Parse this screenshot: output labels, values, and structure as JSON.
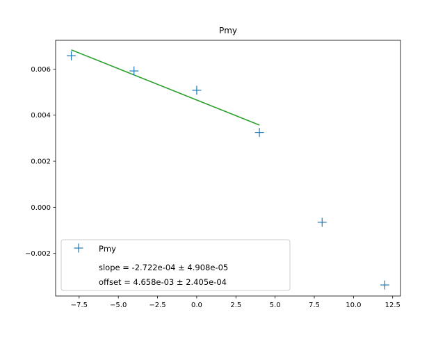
{
  "chart_data": {
    "type": "scatter",
    "title": "Pmy",
    "xlabel": "",
    "ylabel": "",
    "xlim": [
      -9.0,
      13.0
    ],
    "ylim": [
      -0.00385,
      0.00725
    ],
    "xticks": [
      -7.5,
      -5.0,
      -2.5,
      0.0,
      2.5,
      5.0,
      7.5,
      10.0,
      12.5
    ],
    "xtick_labels": [
      "−7.5",
      "−5.0",
      "−2.5",
      "0.0",
      "2.5",
      "5.0",
      "7.5",
      "10.0",
      "12.5"
    ],
    "yticks": [
      -0.002,
      0.0,
      0.002,
      0.004,
      0.006
    ],
    "ytick_labels": [
      "−0.002",
      "0.000",
      "0.002",
      "0.004",
      "0.006"
    ],
    "grid": false,
    "legend_position": "lower-left",
    "series": [
      {
        "name": "Pmy",
        "marker": "+",
        "color": "#1f77b4",
        "x": [
          -8,
          -4,
          0,
          4,
          8,
          12
        ],
        "y": [
          0.00658,
          0.00592,
          0.00508,
          0.00325,
          -0.00065,
          -0.00337
        ]
      }
    ],
    "fit_line": {
      "color": "#2ca02c",
      "x": [
        -8,
        4
      ],
      "y": [
        0.0068356,
        0.0035692
      ]
    },
    "annotation_lines": [
      "slope = -2.722e-04 ± 4.908e-05",
      "offset = 4.658e-03 ± 2.405e-04"
    ]
  }
}
